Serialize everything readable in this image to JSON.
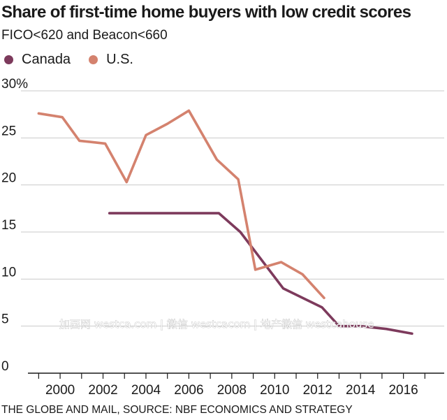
{
  "chart_data": {
    "type": "line",
    "title": "Share of first-time home buyers with low credit scores",
    "subtitle": "FICO<620 and Beacon<660",
    "source": "THE GLOBE AND MAIL, SOURCE: NBF ECONOMICS AND STRATEGY",
    "watermark": "加西网 westca.com | 微信 westcacom | 地产微信 westcahouse",
    "xlim": [
      1998.5,
      2017.9
    ],
    "ylim": [
      0,
      30
    ],
    "x_ticks": [
      2000,
      2002,
      2004,
      2006,
      2008,
      2010,
      2012,
      2014,
      2016
    ],
    "x_tick_labels": [
      "2000",
      "2002",
      "2004",
      "2006",
      "2008",
      "2010",
      "2012",
      "2014",
      "2016"
    ],
    "y_ticks": [
      0,
      5,
      10,
      15,
      20,
      25,
      30
    ],
    "y_tick_labels": [
      "0",
      "5",
      "10",
      "15",
      "20",
      "25",
      "30%"
    ],
    "grid": true,
    "legend_position": "top-left",
    "series": [
      {
        "name": "Canada",
        "color": "#7d3a5c",
        "x": [
          2002.3,
          2007.4,
          2008.4,
          2010.4,
          2012.2,
          2013.0,
          2014.0,
          2015.2,
          2016.4
        ],
        "y": [
          17.0,
          17.0,
          15.0,
          9.0,
          7.0,
          5.0,
          5.0,
          4.7,
          4.2
        ]
      },
      {
        "name": "U.S.",
        "color": "#d4826e",
        "x": [
          1999.0,
          2000.1,
          2000.9,
          2002.1,
          2003.1,
          2004.0,
          2005.0,
          2006.0,
          2007.3,
          2008.3,
          2009.1,
          2010.3,
          2011.3,
          2012.3
        ],
        "y": [
          27.6,
          27.2,
          24.7,
          24.4,
          20.3,
          25.3,
          26.5,
          27.9,
          22.7,
          20.6,
          11.0,
          11.8,
          10.5,
          8.0
        ]
      }
    ]
  }
}
